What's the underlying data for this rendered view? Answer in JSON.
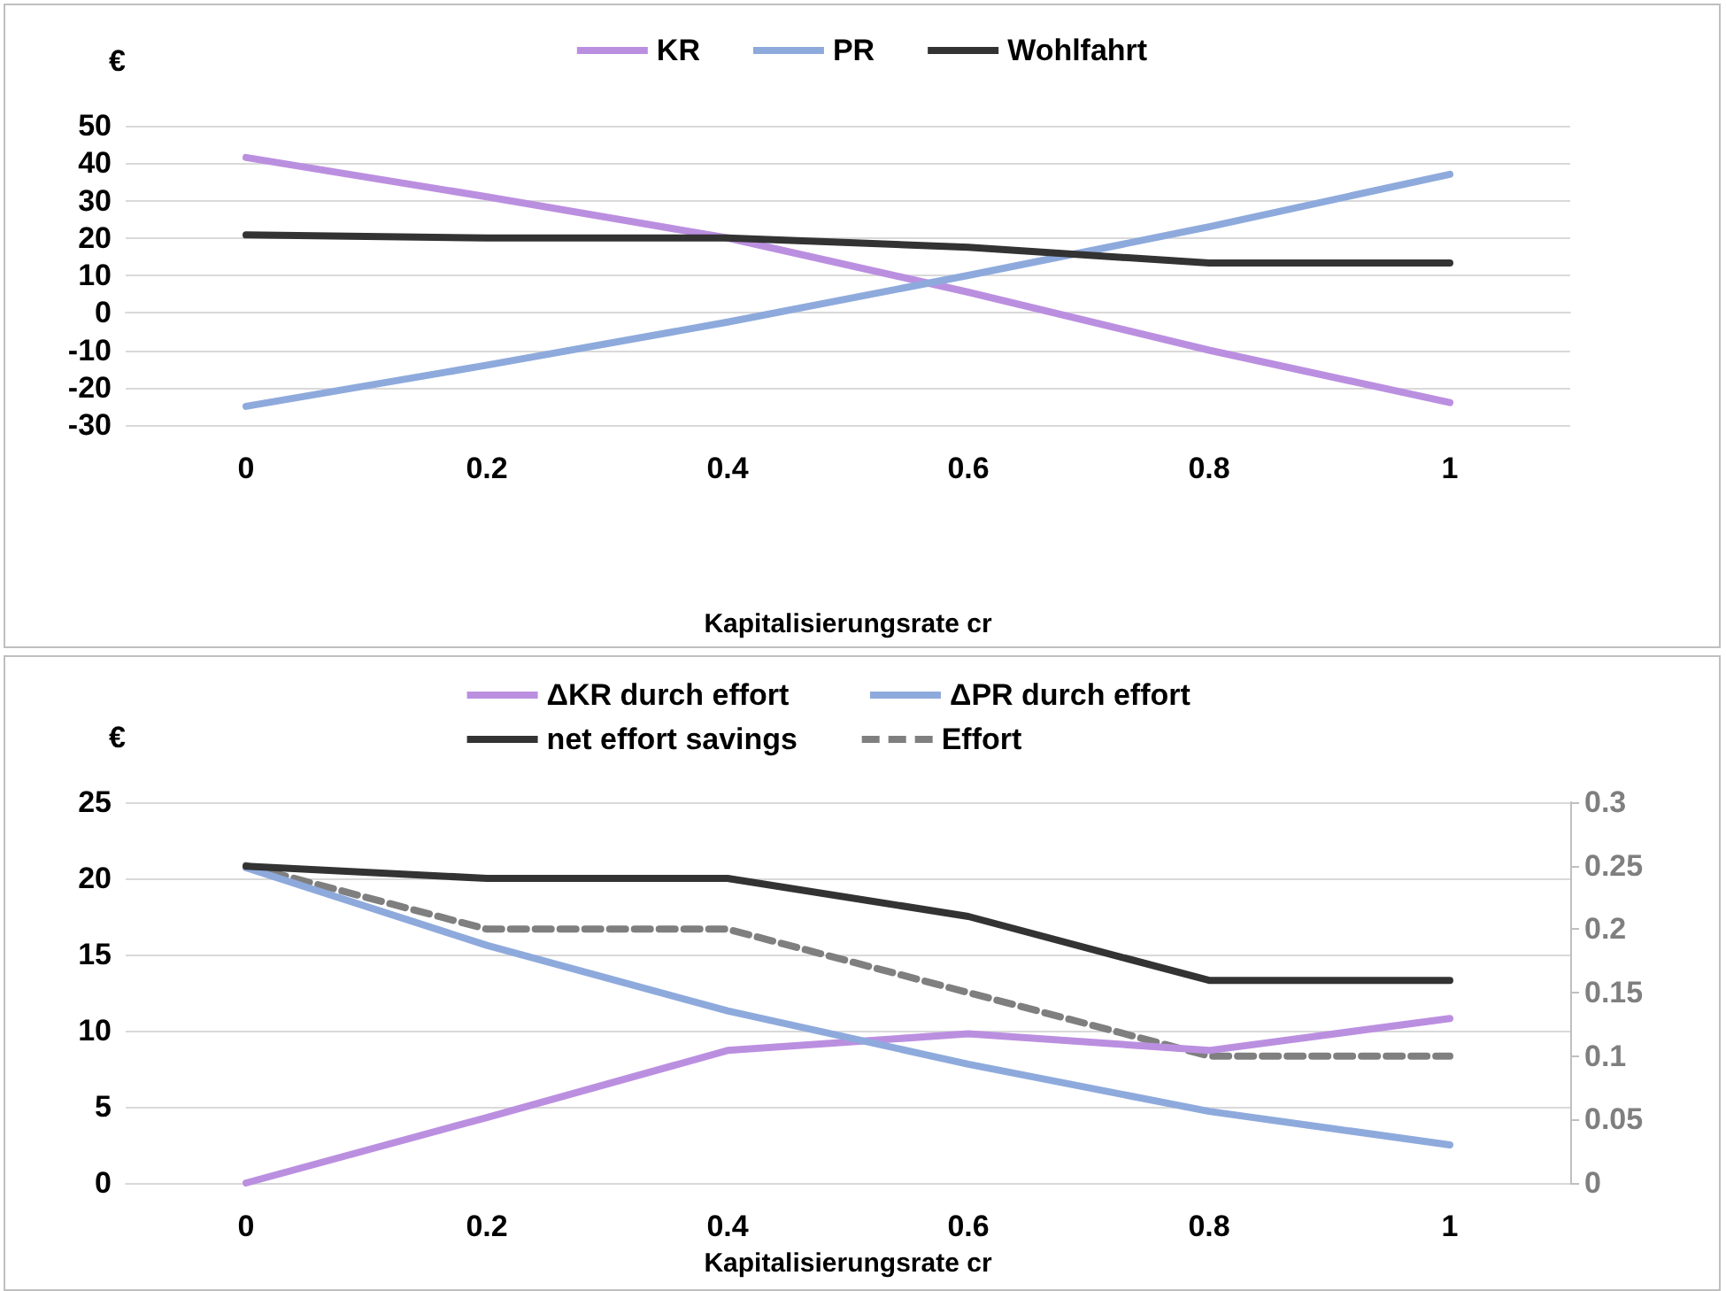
{
  "chart_data": [
    {
      "type": "line",
      "ylabel": "€",
      "xlabel": "Kapitalisierungsrate cr",
      "categories": [
        "0",
        "0.2",
        "0.4",
        "0.6",
        "0.8",
        "1"
      ],
      "series": [
        {
          "name": "KR",
          "color": "#bb8fe0",
          "values": [
            41.5,
            31,
            20,
            5.5,
            -10,
            -24
          ]
        },
        {
          "name": "PR",
          "color": "#8eaadc",
          "values": [
            -25,
            -14,
            -2.5,
            10,
            23,
            37
          ]
        },
        {
          "name": "Wohlfahrt",
          "color": "#333333",
          "values": [
            20.8,
            20,
            20,
            17.5,
            13.3,
            13.3
          ]
        }
      ],
      "ylim": [
        -30,
        50
      ],
      "yticks": [
        -30,
        -20,
        -10,
        0,
        10,
        20,
        30,
        40,
        50
      ],
      "grid": "y",
      "legend": "top",
      "marker": "none",
      "line_style": "solid"
    },
    {
      "type": "line",
      "ylabel": "€",
      "xlabel": "Kapitalisierungsrate cr",
      "categories": [
        "0",
        "0.2",
        "0.4",
        "0.6",
        "0.8",
        "1"
      ],
      "series": [
        {
          "name": "ΔKR durch effort",
          "color": "#bb8fe0",
          "values": [
            0,
            4.3,
            8.7,
            9.8,
            8.7,
            10.8
          ]
        },
        {
          "name": "ΔPR durch effort",
          "color": "#8eaadc",
          "values": [
            20.7,
            15.6,
            11.3,
            7.8,
            4.7,
            2.5
          ]
        },
        {
          "name": "net effort savings",
          "color": "#333333",
          "values": [
            20.8,
            20,
            20,
            17.5,
            13.3,
            13.3
          ]
        },
        {
          "name": "Effort",
          "color": "#7f7f7f",
          "values": [
            0.25,
            0.2,
            0.2,
            0.15,
            0.1,
            0.1
          ],
          "axis": "y2",
          "line_style": "dashed"
        }
      ],
      "ylim": [
        0,
        25
      ],
      "yticks": [
        0,
        5,
        10,
        15,
        20,
        25
      ],
      "y2lim": [
        0,
        0.3
      ],
      "y2ticks": [
        0,
        0.05,
        0.1,
        0.15,
        0.2,
        0.25,
        0.3
      ],
      "grid": "y",
      "legend": "top",
      "marker": "none",
      "line_style": "solid"
    }
  ]
}
